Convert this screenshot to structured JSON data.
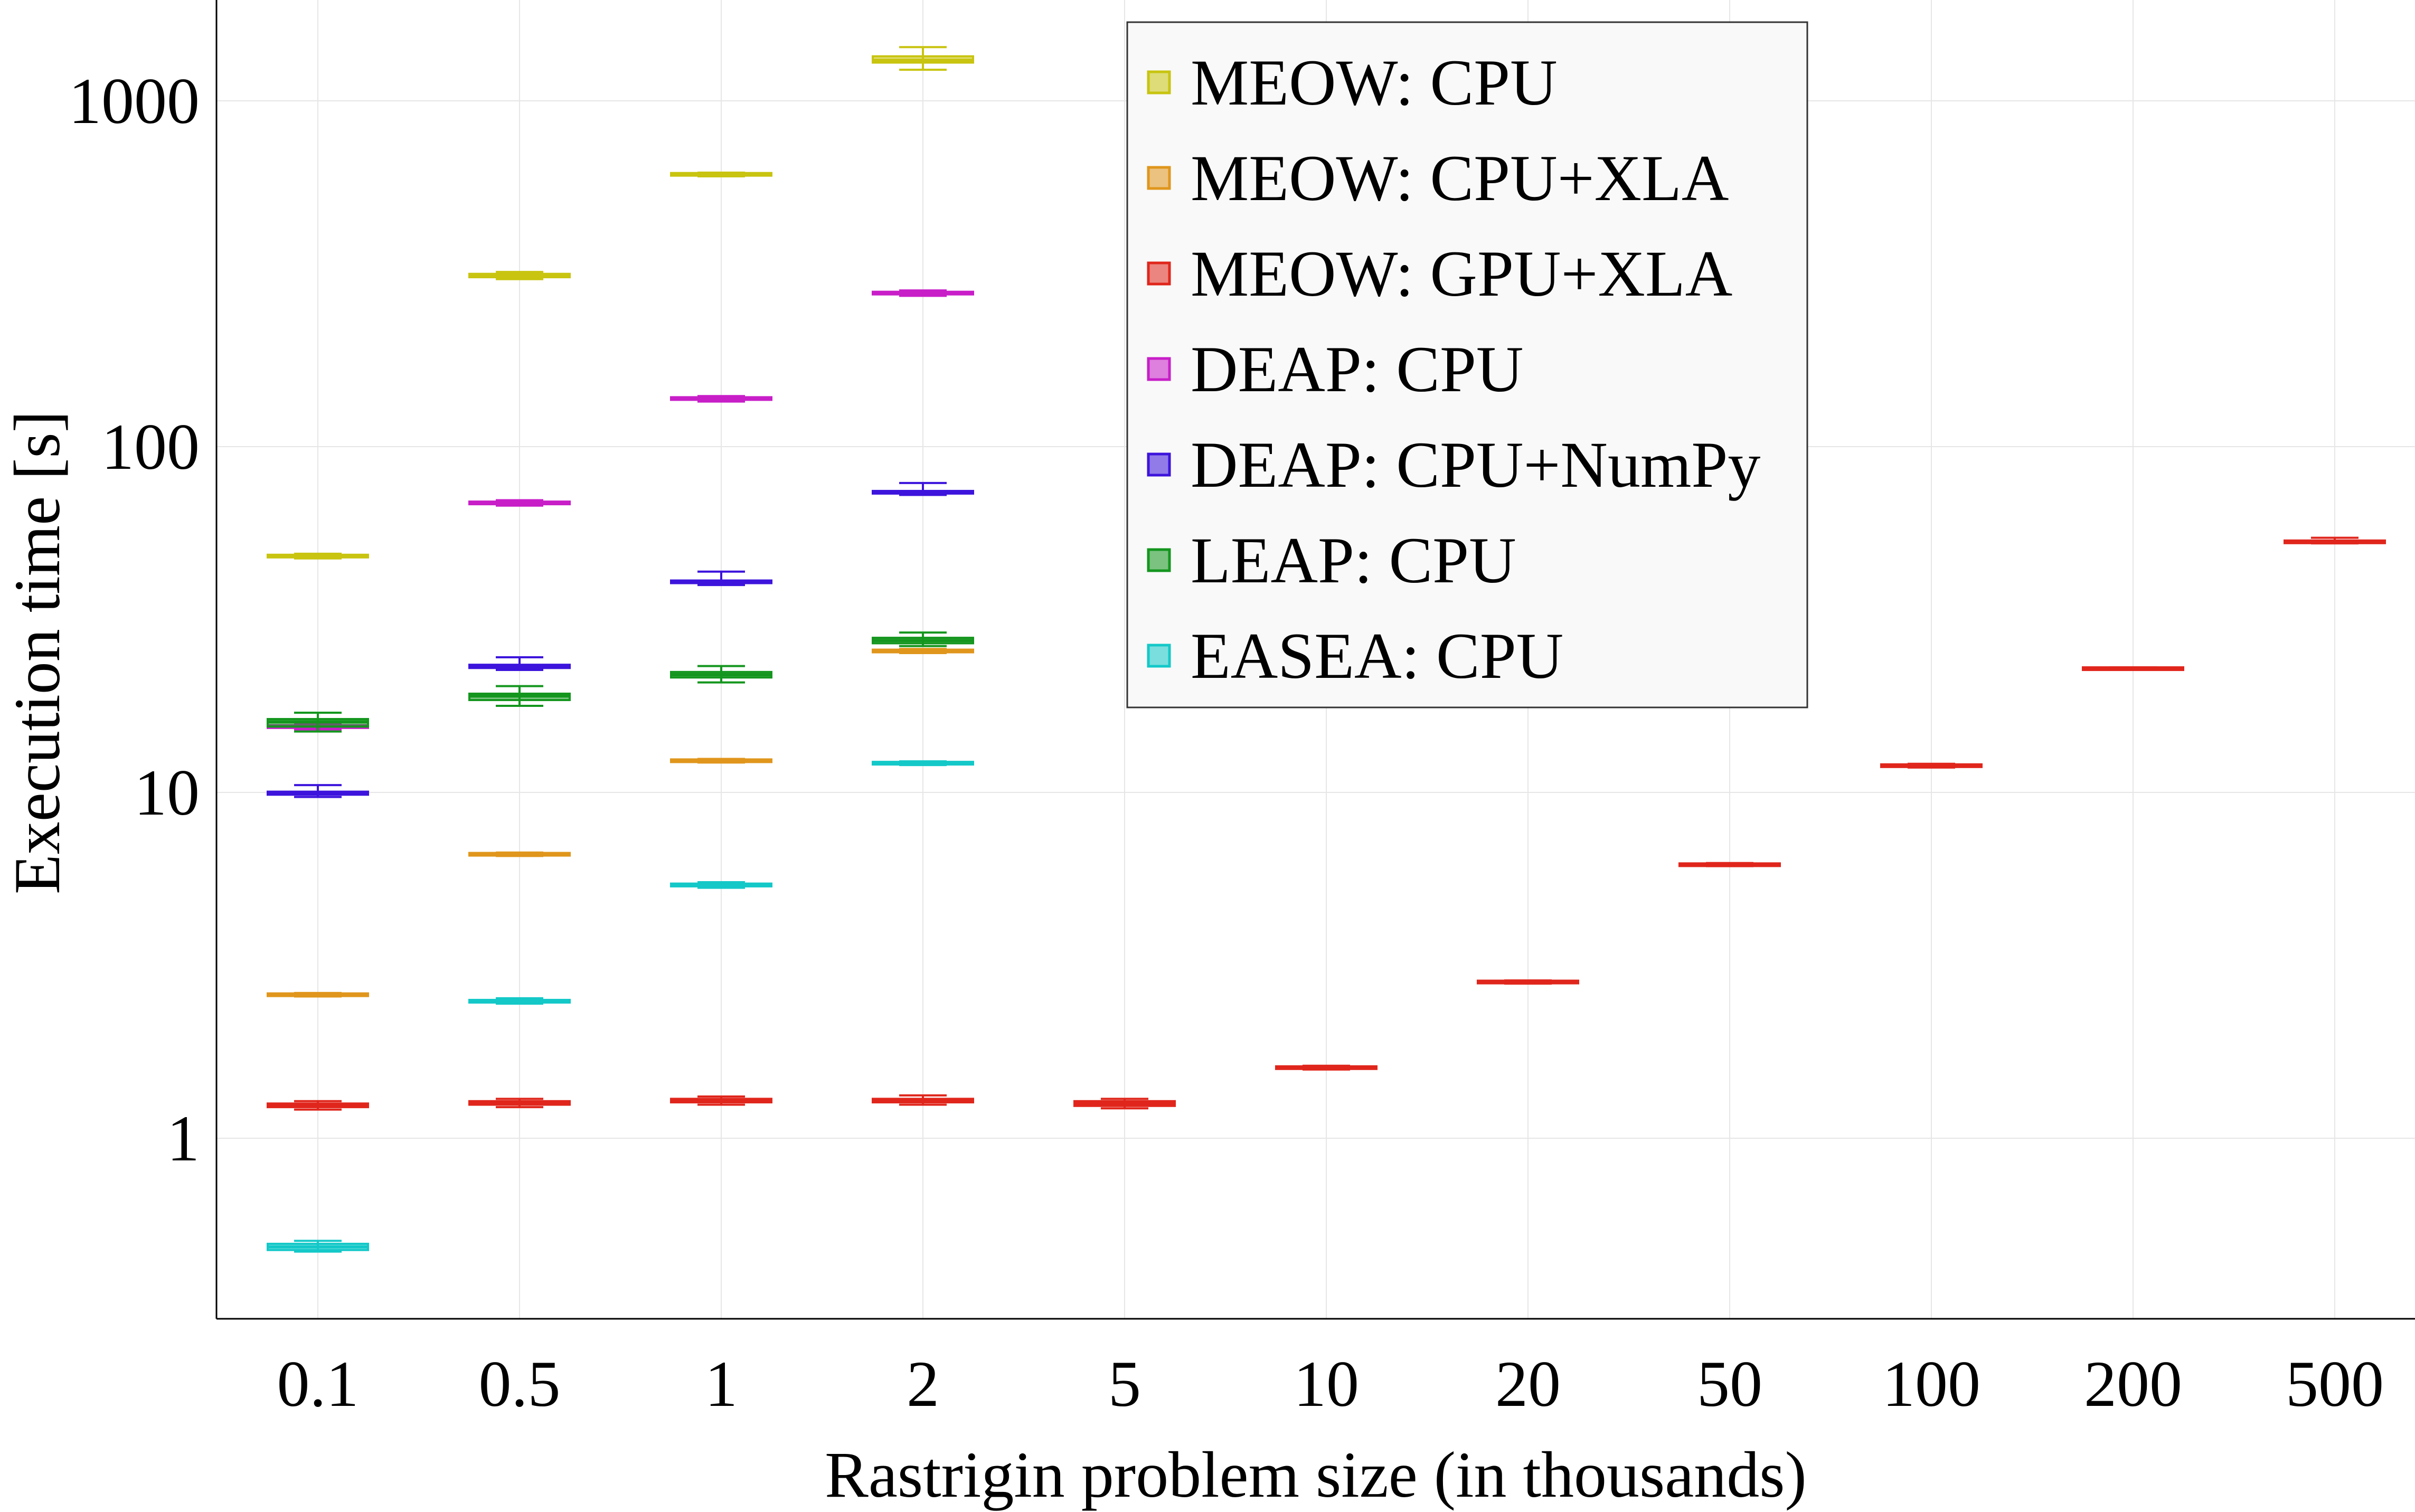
{
  "chart_data": {
    "type": "box",
    "title": "",
    "xlabel": "Rastrigin problem size (in thousands)",
    "ylabel": "Execution time [s]",
    "categories": [
      "0.1",
      "0.5",
      "1",
      "2",
      "5",
      "10",
      "20",
      "50",
      "100",
      "200",
      "500"
    ],
    "yscale": "log",
    "ylim": [
      0.3,
      2000
    ],
    "yticks": [
      1,
      10,
      100,
      1000
    ],
    "ytick_labels": [
      "1",
      "10",
      "100",
      "1000"
    ],
    "grid": true,
    "legend_position": "top-center",
    "series": [
      {
        "name": "MEOW: CPU",
        "color": "#c8c410",
        "values": [
          {
            "category": "0.1",
            "min": 47.5,
            "q1": 47.9,
            "median": 48.2,
            "q3": 48.6,
            "max": 49.0
          },
          {
            "category": "0.5",
            "min": 305,
            "q1": 309,
            "median": 312,
            "q3": 316,
            "max": 320
          },
          {
            "category": "1",
            "min": 605,
            "q1": 610,
            "median": 613,
            "q3": 616,
            "max": 620
          },
          {
            "category": "2",
            "min": 1230,
            "q1": 1290,
            "median": 1310,
            "q3": 1345,
            "max": 1430
          }
        ]
      },
      {
        "name": "MEOW: CPU+XLA",
        "color": "#e0961c",
        "values": [
          {
            "category": "0.1",
            "min": 2.57,
            "q1": 2.59,
            "median": 2.6,
            "q3": 2.61,
            "max": 2.63
          },
          {
            "category": "0.5",
            "min": 6.55,
            "q1": 6.6,
            "median": 6.62,
            "q3": 6.65,
            "max": 6.7
          },
          {
            "category": "1",
            "min": 12.2,
            "q1": 12.3,
            "median": 12.35,
            "q3": 12.4,
            "max": 12.5
          },
          {
            "category": "2",
            "min": 25.3,
            "q1": 25.5,
            "median": 25.6,
            "q3": 25.8,
            "max": 26.0
          }
        ]
      },
      {
        "name": "MEOW: GPU+XLA",
        "color": "#e0261c",
        "values": [
          {
            "category": "0.1",
            "min": 1.21,
            "q1": 1.23,
            "median": 1.24,
            "q3": 1.26,
            "max": 1.28
          },
          {
            "category": "0.5",
            "min": 1.23,
            "q1": 1.25,
            "median": 1.26,
            "q3": 1.28,
            "max": 1.3
          },
          {
            "category": "1",
            "min": 1.25,
            "q1": 1.27,
            "median": 1.28,
            "q3": 1.3,
            "max": 1.32
          },
          {
            "category": "2",
            "min": 1.25,
            "q1": 1.27,
            "median": 1.28,
            "q3": 1.3,
            "max": 1.33
          },
          {
            "category": "5",
            "min": 1.22,
            "q1": 1.24,
            "median": 1.26,
            "q3": 1.28,
            "max": 1.3
          },
          {
            "category": "10",
            "min": 1.58,
            "q1": 1.59,
            "median": 1.6,
            "q3": 1.61,
            "max": 1.62
          },
          {
            "category": "20",
            "min": 2.8,
            "q1": 2.82,
            "median": 2.83,
            "q3": 2.84,
            "max": 2.86
          },
          {
            "category": "50",
            "min": 6.12,
            "q1": 6.16,
            "median": 6.18,
            "q3": 6.2,
            "max": 6.25
          },
          {
            "category": "100",
            "min": 11.8,
            "q1": 11.9,
            "median": 11.95,
            "q3": 12.0,
            "max": 12.1
          },
          {
            "category": "200",
            "min": 22.6,
            "q1": 22.7,
            "median": 22.8,
            "q3": 22.9,
            "max": 23.0
          },
          {
            "category": "500",
            "min": 52.5,
            "q1": 52.8,
            "median": 53.0,
            "q3": 53.3,
            "max": 54.5
          }
        ]
      },
      {
        "name": "DEAP: CPU",
        "color": "#c81ec8",
        "values": [
          {
            "category": "0.1",
            "min": 15.2,
            "q1": 15.4,
            "median": 15.5,
            "q3": 15.6,
            "max": 15.8
          },
          {
            "category": "0.5",
            "min": 67.5,
            "q1": 68.2,
            "median": 68.7,
            "q3": 69.3,
            "max": 70.0
          },
          {
            "category": "1",
            "min": 135,
            "q1": 137,
            "median": 137.5,
            "q3": 138.5,
            "max": 140
          },
          {
            "category": "2",
            "min": 273,
            "q1": 276,
            "median": 278,
            "q3": 280,
            "max": 283
          }
        ]
      },
      {
        "name": "DEAP: CPU+NumPy",
        "color": "#3c14dc",
        "values": [
          {
            "category": "0.1",
            "min": 9.7,
            "q1": 9.85,
            "median": 9.95,
            "q3": 10.05,
            "max": 10.5
          },
          {
            "category": "0.5",
            "min": 22.6,
            "q1": 22.9,
            "median": 23.1,
            "q3": 23.4,
            "max": 24.6
          },
          {
            "category": "1",
            "min": 39.8,
            "q1": 40.3,
            "median": 40.6,
            "q3": 41.0,
            "max": 43.5
          },
          {
            "category": "2",
            "min": 72.5,
            "q1": 73.3,
            "median": 73.8,
            "q3": 74.3,
            "max": 78.5
          }
        ]
      },
      {
        "name": "LEAP: CPU",
        "color": "#14961e",
        "values": [
          {
            "category": "0.1",
            "min": 15.0,
            "q1": 15.5,
            "median": 16.0,
            "q3": 16.3,
            "max": 17.0
          },
          {
            "category": "0.5",
            "min": 17.8,
            "q1": 18.5,
            "median": 19.0,
            "q3": 19.3,
            "max": 20.3
          },
          {
            "category": "1",
            "min": 20.8,
            "q1": 21.5,
            "median": 21.9,
            "q3": 22.3,
            "max": 23.2
          },
          {
            "category": "2",
            "min": 26.5,
            "q1": 27.0,
            "median": 27.5,
            "q3": 28.0,
            "max": 29.0
          }
        ]
      },
      {
        "name": "EASEA: CPU",
        "color": "#14c8c8",
        "values": [
          {
            "category": "0.1",
            "min": 0.47,
            "q1": 0.475,
            "median": 0.485,
            "q3": 0.495,
            "max": 0.505
          },
          {
            "category": "0.5",
            "min": 2.45,
            "q1": 2.47,
            "median": 2.49,
            "q3": 2.51,
            "max": 2.54
          },
          {
            "category": "1",
            "min": 5.3,
            "q1": 5.35,
            "median": 5.4,
            "q3": 5.45,
            "max": 5.5
          },
          {
            "category": "2",
            "min": 12.0,
            "q1": 12.1,
            "median": 12.15,
            "q3": 12.2,
            "max": 12.3
          }
        ]
      }
    ]
  }
}
